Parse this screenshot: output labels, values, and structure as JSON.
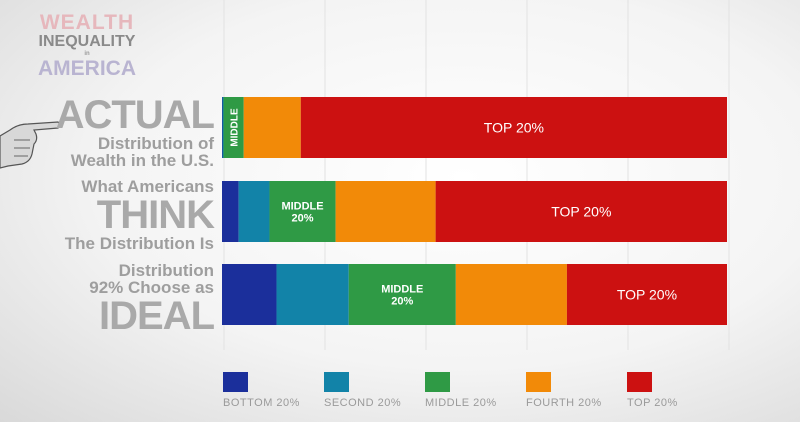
{
  "logo": {
    "line1": "WEALTH",
    "line2": "INEQUALITY",
    "line3": "in",
    "line4": "AMERICA"
  },
  "labels": {
    "actual": {
      "big": "ACTUAL",
      "line2": "Distribution of",
      "line3": "Wealth in the U.S."
    },
    "think": {
      "line1": "What Americans",
      "big": "THINK",
      "line3": "The Distribution Is"
    },
    "ideal": {
      "line1": "Distribution",
      "line2": "92% Choose as",
      "big": "IDEAL"
    }
  },
  "colors": {
    "bottom": "#1b2f9b",
    "second": "#1283a8",
    "middle": "#2f9a45",
    "fourth": "#f28a08",
    "top": "#cc1111"
  },
  "chart_data": {
    "type": "bar",
    "orientation": "horizontal-stacked",
    "xlim": [
      0,
      100
    ],
    "categories": [
      "Actual",
      "Think",
      "Ideal"
    ],
    "series": [
      {
        "name": "BOTTOM 20%",
        "key": "bottom",
        "values": [
          0.1,
          3.3,
          10.8
        ]
      },
      {
        "name": "SECOND 20%",
        "key": "second",
        "values": [
          0.2,
          6.1,
          14.3
        ]
      },
      {
        "name": "MIDDLE 20%",
        "key": "middle",
        "values": [
          4.0,
          13.1,
          21.2
        ]
      },
      {
        "name": "FOURTH 20%",
        "key": "fourth",
        "values": [
          11.3,
          19.8,
          22.0
        ]
      },
      {
        "name": "TOP 20%",
        "key": "top",
        "values": [
          84.4,
          57.7,
          31.7
        ]
      }
    ],
    "segment_labels": [
      {
        "row": 0,
        "series": "middle",
        "text": "MIDDLE",
        "vertical": true
      },
      {
        "row": 0,
        "series": "top",
        "text": "TOP 20%"
      },
      {
        "row": 1,
        "series": "middle",
        "text": "MIDDLE",
        "text2": "20%"
      },
      {
        "row": 1,
        "series": "top",
        "text": "TOP 20%"
      },
      {
        "row": 2,
        "series": "middle",
        "text": "MIDDLE",
        "text2": "20%"
      },
      {
        "row": 2,
        "series": "top",
        "text": "TOP 20%"
      }
    ]
  }
}
